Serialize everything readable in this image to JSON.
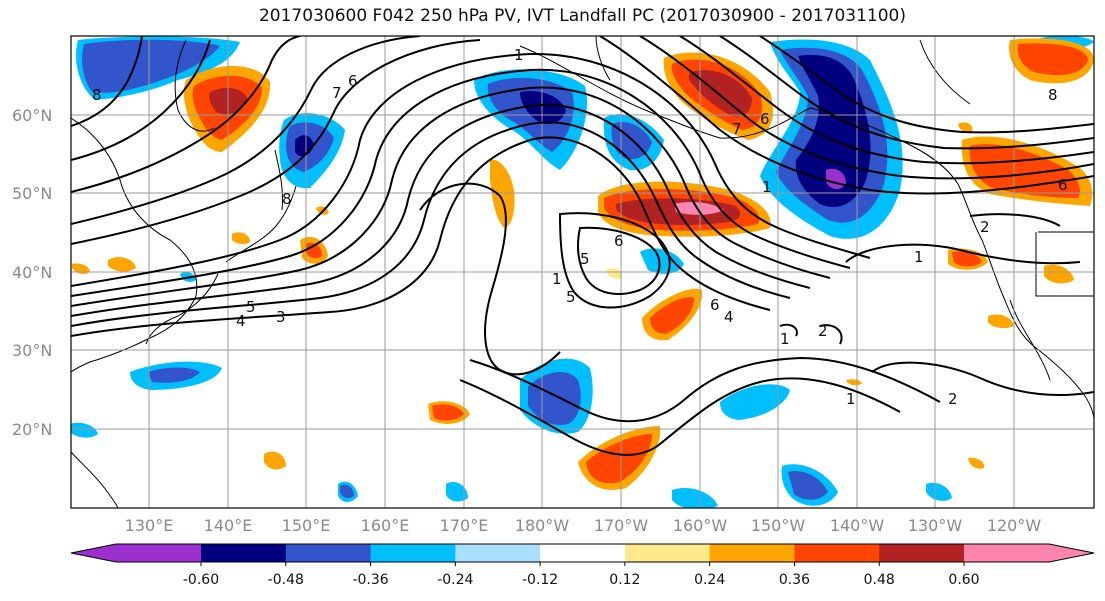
{
  "title": "2017030600 F042 250 hPa PV, IVT Landfall PC (2017030900 - 2017031100)",
  "latitude_labels": [
    "60°N",
    "50°N",
    "40°N",
    "30°N",
    "20°N"
  ],
  "longitude_labels": [
    "130°E",
    "140°E",
    "150°E",
    "160°E",
    "170°E",
    "180°W",
    "170°W",
    "160°W",
    "150°W",
    "140°W",
    "130°W",
    "120°W"
  ],
  "contour_labels": [
    "1",
    "6",
    "7",
    "8",
    "8",
    "5",
    "4",
    "3",
    "1",
    "5",
    "6",
    "5",
    "6",
    "4",
    "1",
    "2",
    "1",
    "1",
    "2",
    "6",
    "8",
    "7",
    "6",
    "1",
    "2"
  ],
  "colorbar": {
    "ticks": [
      "-0.60",
      "-0.48",
      "-0.36",
      "-0.24",
      "-0.12",
      "0.12",
      "0.24",
      "0.36",
      "0.48",
      "0.60"
    ],
    "bins": [
      "#9b30cf",
      "#00007f",
      "#3355cc",
      "#00bfff",
      "#aadfff",
      "#ffffff",
      "#ffe98a",
      "#ffa500",
      "#ff4500",
      "#b22222",
      "#ff85b0"
    ]
  },
  "colors": {
    "strong_negative": "#00007f",
    "negative": "#3355cc",
    "weak_negative": "#00bfff",
    "faint_negative": "#aadfff",
    "faint_positive": "#ffe98a",
    "weak_positive": "#ffa500",
    "positive": "#ff4500",
    "strong_positive": "#b22222",
    "extreme_positive": "#ff85b0"
  }
}
